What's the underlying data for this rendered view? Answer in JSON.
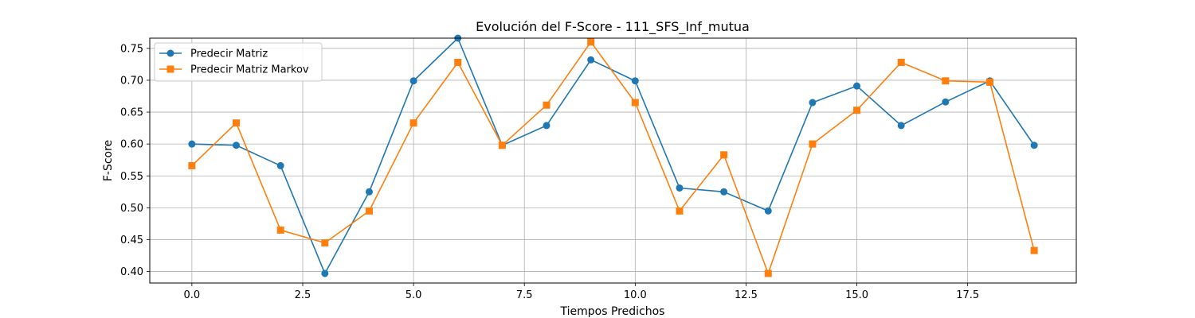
{
  "chart_data": {
    "type": "line",
    "title": "Evolución del F-Score - 111_SFS_Inf_mutua",
    "xlabel": "Tiempos Predichos",
    "ylabel": "F-Score",
    "xlim": [
      -0.95,
      19.95
    ],
    "ylim": [
      0.382,
      0.766
    ],
    "xticks": [
      0.0,
      2.5,
      5.0,
      7.5,
      10.0,
      12.5,
      15.0,
      17.5
    ],
    "xtick_labels": [
      "0.0",
      "2.5",
      "5.0",
      "7.5",
      "10.0",
      "12.5",
      "15.0",
      "17.5"
    ],
    "yticks": [
      0.4,
      0.45,
      0.5,
      0.55,
      0.6,
      0.65,
      0.7,
      0.75
    ],
    "ytick_labels": [
      "0.40",
      "0.45",
      "0.50",
      "0.55",
      "0.60",
      "0.65",
      "0.70",
      "0.75"
    ],
    "grid": true,
    "legend_position": "upper-left",
    "x": [
      0,
      1,
      2,
      3,
      4,
      5,
      6,
      7,
      8,
      9,
      10,
      11,
      12,
      13,
      14,
      15,
      16,
      17,
      18,
      19
    ],
    "series": [
      {
        "name": "Predecir Matriz",
        "color": "#1f77b4",
        "marker": "circle",
        "values": [
          0.6,
          0.598,
          0.566,
          0.397,
          0.525,
          0.699,
          0.766,
          0.598,
          0.629,
          0.732,
          0.699,
          0.531,
          0.525,
          0.495,
          0.665,
          0.691,
          0.629,
          0.666,
          0.699,
          0.598
        ]
      },
      {
        "name": "Predecir Matriz Markov",
        "color": "#ff7f0e",
        "marker": "square",
        "values": [
          0.566,
          0.633,
          0.465,
          0.445,
          0.495,
          0.633,
          0.728,
          0.598,
          0.661,
          0.76,
          0.665,
          0.495,
          0.583,
          0.397,
          0.6,
          0.653,
          0.728,
          0.699,
          0.697,
          0.433
        ]
      }
    ]
  }
}
